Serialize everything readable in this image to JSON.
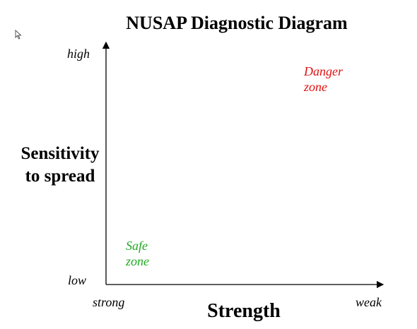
{
  "title": "NUSAP Diagnostic Diagram",
  "y_axis": {
    "label_line1": "Sensitivity",
    "label_line2": "to spread",
    "high": "high",
    "low": "low"
  },
  "x_axis": {
    "label": "Strength",
    "left": "strong",
    "right": "weak"
  },
  "danger_zone": {
    "line1": "Danger",
    "line2": "zone",
    "color": "#e01010"
  },
  "safe_zone": {
    "line1": "Safe",
    "line2": "zone",
    "color": "#22aa22"
  }
}
